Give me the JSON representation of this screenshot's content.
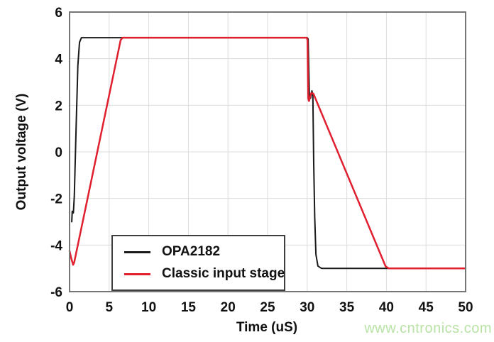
{
  "figure": {
    "watermark": "www.cntronics.com",
    "watermark_color": "#b9e3a6",
    "background_color": "#ffffff"
  },
  "chart_data": {
    "type": "line",
    "title": "",
    "xlabel": "Time (uS)",
    "ylabel": "Output voltage (V)",
    "xlim": [
      0,
      50
    ],
    "ylim": [
      -6,
      6
    ],
    "x_ticks": [
      0,
      5,
      10,
      15,
      20,
      25,
      30,
      35,
      40,
      45,
      50
    ],
    "y_ticks": [
      6,
      4,
      2,
      0,
      -2,
      -4,
      -6
    ],
    "grid": true,
    "grid_color": "#dcdcdc",
    "border_color": "#767676",
    "tick_label_color": "#111111",
    "legend_position": "lower-left-inside",
    "series": [
      {
        "name": "OPA2182",
        "color": "#1a1a1a",
        "width": 2,
        "points": [
          [
            0.28,
            -3.0
          ],
          [
            0.34,
            -2.55
          ],
          [
            0.48,
            -2.62
          ],
          [
            0.6,
            -1.9
          ],
          [
            0.82,
            1.0
          ],
          [
            1.05,
            3.7
          ],
          [
            1.25,
            4.7
          ],
          [
            1.5,
            4.9
          ],
          [
            30.0,
            4.9
          ],
          [
            30.12,
            4.85
          ],
          [
            30.28,
            2.4
          ],
          [
            30.42,
            2.3
          ],
          [
            30.6,
            2.62
          ],
          [
            30.72,
            2.4
          ],
          [
            30.82,
            -0.5
          ],
          [
            30.95,
            -2.8
          ],
          [
            31.1,
            -4.4
          ],
          [
            31.35,
            -4.9
          ],
          [
            31.8,
            -5.0
          ],
          [
            50.0,
            -5.0
          ]
        ]
      },
      {
        "name": "Classic input stage",
        "color": "#e01f2f",
        "width": 2.5,
        "points": [
          [
            0.0,
            -4.25
          ],
          [
            0.2,
            -4.55
          ],
          [
            0.45,
            -4.85
          ],
          [
            0.58,
            -4.75
          ],
          [
            6.45,
            4.8
          ],
          [
            6.7,
            4.9
          ],
          [
            29.95,
            4.9
          ],
          [
            30.04,
            4.8
          ],
          [
            30.13,
            2.3
          ],
          [
            30.22,
            2.18
          ],
          [
            30.5,
            2.52
          ],
          [
            30.78,
            2.5
          ],
          [
            39.9,
            -4.92
          ],
          [
            40.3,
            -5.0
          ],
          [
            50.0,
            -5.0
          ]
        ]
      }
    ]
  }
}
